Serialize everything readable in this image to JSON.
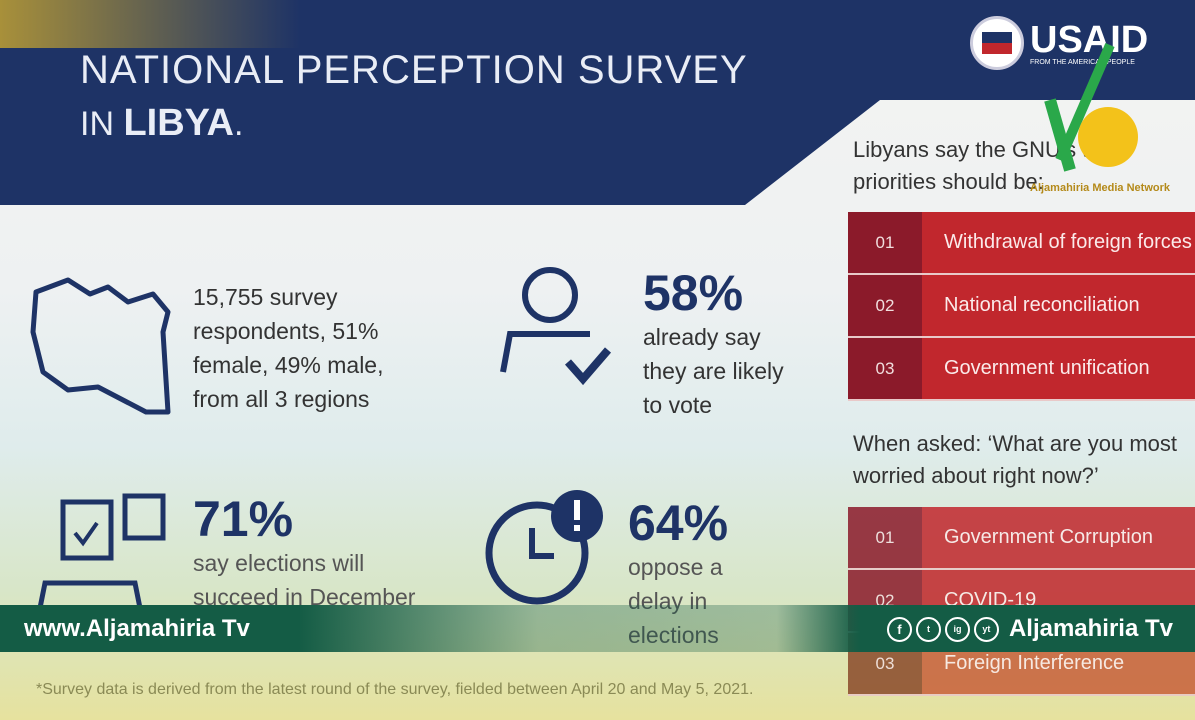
{
  "header": {
    "title_line1": "NATIONAL PERCEPTION SURVEY",
    "title_line2_prefix": "IN",
    "title_line2_bold": "LIBYA",
    "logo": "USAID",
    "logo_sub": "FROM THE AMERICAN PEOPLE"
  },
  "stats": [
    {
      "icon": "libya-map-icon",
      "big": "",
      "text": [
        "15,755 survey",
        "respondents, 51%",
        "female, 49% male,",
        "from all 3 regions"
      ]
    },
    {
      "icon": "person-check-icon",
      "big": "58%",
      "text": [
        "already say",
        "they are likely",
        "to vote"
      ]
    },
    {
      "icon": "ballot-box-icon",
      "big": "71%",
      "text": [
        "say elections will",
        "succeed in December"
      ]
    },
    {
      "icon": "clock-alert-icon",
      "big": "64%",
      "text": [
        "oppose a",
        "delay in",
        "elections"
      ]
    }
  ],
  "priorities": {
    "intro": [
      "Libyans say the GNU's three",
      "priorities should be:"
    ],
    "rows": [
      {
        "num": "01",
        "label": "Withdrawal of foreign forces"
      },
      {
        "num": "02",
        "label": "National reconciliation"
      },
      {
        "num": "03",
        "label": "Government unification"
      }
    ]
  },
  "worries": {
    "intro": [
      "When asked: ‘What are you most",
      "worried about right now?’"
    ],
    "rows": [
      {
        "num": "01",
        "label": "Government Corruption"
      },
      {
        "num": "02",
        "label": "COVID-19"
      },
      {
        "num": "03",
        "label": "Foreign Interference"
      }
    ]
  },
  "footnote": "*Survey data is derived from the latest round of the survey, fielded between April 20 and May 5, 2021.",
  "ticker": {
    "left": "www.Aljamahiria Tv",
    "right": "Aljamahiria Tv",
    "social": [
      "f",
      "t",
      "ig",
      "yt"
    ]
  },
  "watermark": "Aljamahiria Media Network",
  "colors": {
    "navy": "#1e3366",
    "red": "#c1272d",
    "dark_red": "#8b1a2a",
    "ticker_green": "#145c45"
  }
}
